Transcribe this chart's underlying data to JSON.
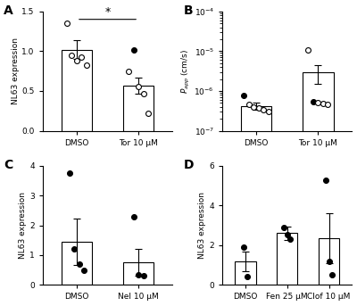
{
  "panel_A": {
    "bars": [
      {
        "label": "DMSO",
        "mean": 1.02,
        "sem": 0.12,
        "dots": [
          1.35,
          0.95,
          0.88,
          0.92,
          0.82
        ],
        "dot_filled": [
          false,
          false,
          false,
          false,
          false
        ]
      },
      {
        "label": "Tor 10 μM",
        "mean": 0.57,
        "sem": 0.1,
        "dots": [
          0.75,
          1.02,
          0.55,
          0.47,
          0.22
        ],
        "dot_filled": [
          false,
          true,
          false,
          false,
          false
        ]
      }
    ],
    "ylabel": "NL63 expression",
    "ylim": [
      0,
      1.5
    ],
    "yticks": [
      0.0,
      0.5,
      1.0,
      1.5
    ],
    "significance": "*",
    "label": "A"
  },
  "panel_B": {
    "bars": [
      {
        "label": "DMSO",
        "mean": 4.2e-07,
        "sem": 9e-08,
        "dots": [
          7.8e-07,
          4.5e-07,
          4e-07,
          3.7e-07,
          3.3e-07,
          3e-07
        ],
        "dot_filled": [
          true,
          false,
          false,
          false,
          false,
          false
        ]
      },
      {
        "label": "Tor 10 μM",
        "mean": 3e-06,
        "sem": 1.5e-06,
        "dots": [
          1.05e-05,
          5.5e-07,
          5e-07,
          4.8e-07,
          4.5e-07
        ],
        "dot_filled": [
          false,
          true,
          false,
          false,
          false
        ]
      }
    ],
    "ylabel": "$P_{app}$ (cm/s)",
    "ylim_log": [
      1e-07,
      0.0001
    ],
    "yticks_log": [
      1e-07,
      1e-06,
      1e-05,
      0.0001
    ],
    "label": "B"
  },
  "panel_C": {
    "bars": [
      {
        "label": "DMSO",
        "mean": 1.45,
        "sem": 0.78,
        "dots": [
          3.75,
          1.2,
          0.7,
          0.5
        ],
        "dot_filled": [
          true,
          true,
          true,
          true
        ]
      },
      {
        "label": "Nel 10 μM",
        "mean": 0.77,
        "sem": 0.45,
        "dots": [
          2.28,
          0.34,
          0.32
        ],
        "dot_filled": [
          true,
          true,
          true
        ]
      }
    ],
    "ylabel": "NL63 expression",
    "ylim": [
      0,
      4
    ],
    "yticks": [
      0,
      1,
      2,
      3,
      4
    ],
    "label": "C"
  },
  "panel_D": {
    "bars": [
      {
        "label": "DMSO",
        "mean": 1.2,
        "sem": 0.5,
        "dots": [
          1.9,
          0.4
        ],
        "dot_filled": [
          true,
          true
        ]
      },
      {
        "label": "Fen 25 μM",
        "mean": 2.6,
        "sem": 0.35,
        "dots": [
          2.9,
          2.55,
          2.3
        ],
        "dot_filled": [
          true,
          true,
          true
        ]
      },
      {
        "label": "Clof 10 μM",
        "mean": 2.35,
        "sem": 1.25,
        "dots": [
          5.25,
          1.2,
          0.5
        ],
        "dot_filled": [
          true,
          true,
          true
        ]
      }
    ],
    "ylabel": "NL63 expression",
    "ylim": [
      0,
      6
    ],
    "yticks": [
      0,
      2,
      4,
      6
    ],
    "label": "D"
  },
  "bar_color": "white",
  "bar_edgecolor": "black",
  "bar_width": 0.5,
  "dot_size": 18,
  "error_color": "black",
  "capsize": 3,
  "linewidth": 0.8
}
